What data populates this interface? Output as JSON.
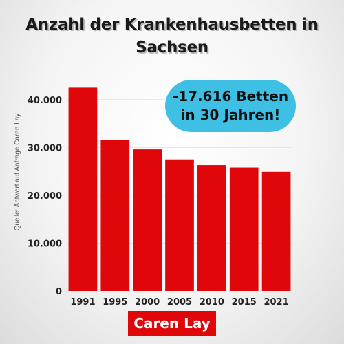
{
  "title_lines": [
    "Anzahl der Krankenhausbetten in",
    "Sachsen"
  ],
  "source_note": "Quelle: Antwort auf Anfrage Caren Lay",
  "callout": {
    "line1": "-17.616 Betten",
    "line2": "in 30 Jahren!"
  },
  "brand_label": "Caren Lay",
  "colors": {
    "bar": "#e0070b",
    "callout": "#3ec0e4",
    "brand_bg": "#e0070b"
  },
  "chart_data": {
    "type": "bar",
    "title": "Anzahl der Krankenhausbetten in Sachsen",
    "xlabel": "",
    "ylabel": "",
    "categories": [
      "1991",
      "1995",
      "2000",
      "2005",
      "2010",
      "2015",
      "2021"
    ],
    "values": [
      42500,
      31600,
      29600,
      27500,
      26300,
      25800,
      24900
    ],
    "ylim": [
      0,
      45000
    ],
    "yticks": [
      0,
      10000,
      20000,
      30000,
      40000
    ],
    "ytick_labels": [
      "0",
      "10.000",
      "20.000",
      "30.000",
      "40.000"
    ],
    "grid": true,
    "legend": "none"
  }
}
